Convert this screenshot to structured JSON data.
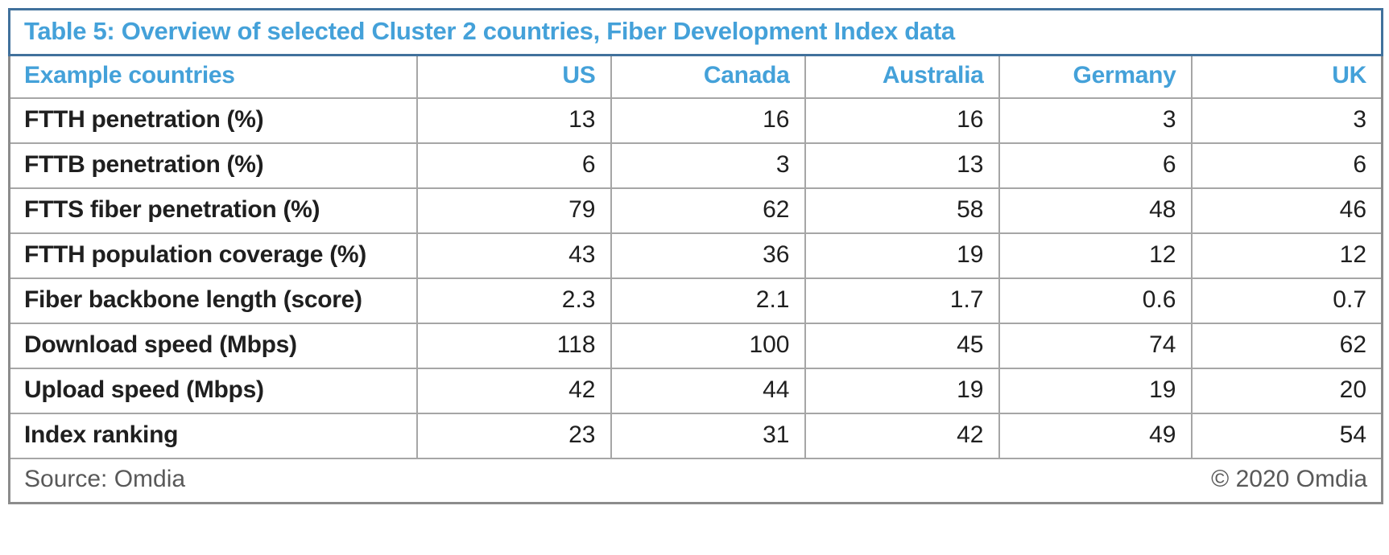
{
  "table": {
    "title": "Table 5: Overview of selected Cluster 2 countries, Fiber Development Index data",
    "header": {
      "label": "Example countries",
      "columns": [
        "US",
        "Canada",
        "Australia",
        "Germany",
        "UK"
      ]
    },
    "rows": [
      {
        "label": "FTTH penetration (%)",
        "values": [
          "13",
          "16",
          "16",
          "3",
          "3"
        ]
      },
      {
        "label": "FTTB penetration (%)",
        "values": [
          "6",
          "3",
          "13",
          "6",
          "6"
        ]
      },
      {
        "label": "FTTS fiber penetration (%)",
        "values": [
          "79",
          "62",
          "58",
          "48",
          "46"
        ]
      },
      {
        "label": "FTTH population coverage (%)",
        "values": [
          "43",
          "36",
          "19",
          "12",
          "12"
        ]
      },
      {
        "label": "Fiber backbone length (score)",
        "values": [
          "2.3",
          "2.1",
          "1.7",
          "0.6",
          "0.7"
        ]
      },
      {
        "label": "Download speed (Mbps)",
        "values": [
          "118",
          "100",
          "45",
          "74",
          "62"
        ]
      },
      {
        "label": "Upload speed (Mbps)",
        "values": [
          "42",
          "44",
          "19",
          "19",
          "20"
        ]
      },
      {
        "label": "Index ranking",
        "values": [
          "23",
          "31",
          "42",
          "49",
          "54"
        ]
      }
    ],
    "footer": {
      "source": "Source: Omdia",
      "copyright": "© 2020 Omdia"
    },
    "colors": {
      "title_text": "#44a1d9",
      "header_text": "#44a1d9",
      "title_border": "#41719c",
      "grid_line": "#a6a6a6",
      "outer_border": "#8c8c8c",
      "body_text": "#1f1f1f",
      "footer_text": "#595959"
    }
  },
  "chart_data": {
    "type": "table",
    "title": "Table 5: Overview of selected Cluster 2 countries, Fiber Development Index data",
    "categories": [
      "US",
      "Canada",
      "Australia",
      "Germany",
      "UK"
    ],
    "series": [
      {
        "name": "FTTH penetration (%)",
        "values": [
          13,
          16,
          16,
          3,
          3
        ]
      },
      {
        "name": "FTTB penetration (%)",
        "values": [
          6,
          3,
          13,
          6,
          6
        ]
      },
      {
        "name": "FTTS fiber penetration (%)",
        "values": [
          79,
          62,
          58,
          48,
          46
        ]
      },
      {
        "name": "FTTH population coverage (%)",
        "values": [
          43,
          36,
          19,
          12,
          12
        ]
      },
      {
        "name": "Fiber backbone length (score)",
        "values": [
          2.3,
          2.1,
          1.7,
          0.6,
          0.7
        ]
      },
      {
        "name": "Download speed (Mbps)",
        "values": [
          118,
          100,
          45,
          74,
          62
        ]
      },
      {
        "name": "Upload speed (Mbps)",
        "values": [
          42,
          44,
          19,
          19,
          20
        ]
      },
      {
        "name": "Index ranking",
        "values": [
          23,
          31,
          42,
          49,
          54
        ]
      }
    ]
  }
}
